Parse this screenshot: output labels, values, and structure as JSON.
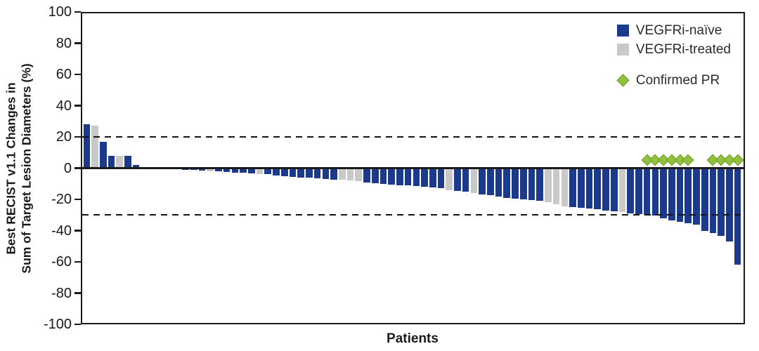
{
  "chart_data": {
    "type": "bar",
    "subtype": "waterfall",
    "title": "",
    "xlabel": "Patients",
    "ylabel": "Best RECIST v1.1 Changes in Sum of Target Lesion Diameters (%)",
    "ylabel_lines": [
      "Best RECIST v1.1 Changes in",
      "Sum of Target Lesion Diameters (%)"
    ],
    "ylim": [
      -100,
      100
    ],
    "yticks": [
      100,
      80,
      60,
      40,
      20,
      0,
      -20,
      -40,
      -60,
      -80,
      -100
    ],
    "reference_lines": [
      20,
      -30
    ],
    "grid": false,
    "legend_position": "top-right",
    "colors": {
      "naive": "#1b3a8c",
      "treated": "#c9c9c9",
      "confirmed_pr": "#92c03e",
      "axis": "#1a1a1a"
    },
    "series": [
      {
        "name": "VEGFRi-naïve",
        "group": "naive",
        "color": "#1b3a8c"
      },
      {
        "name": "VEGFRi-treated",
        "group": "treated",
        "color": "#c9c9c9"
      }
    ],
    "pr_marker": {
      "label": "Confirmed PR",
      "color": "#92c03e",
      "shape": "diamond"
    },
    "n_patients": 80,
    "patients": [
      {
        "value": 28,
        "group": "naive",
        "confirmed_pr": false
      },
      {
        "value": 27,
        "group": "treated",
        "confirmed_pr": false
      },
      {
        "value": 17,
        "group": "naive",
        "confirmed_pr": false
      },
      {
        "value": 8,
        "group": "naive",
        "confirmed_pr": false
      },
      {
        "value": 8,
        "group": "treated",
        "confirmed_pr": false
      },
      {
        "value": 8,
        "group": "naive",
        "confirmed_pr": false
      },
      {
        "value": 2,
        "group": "naive",
        "confirmed_pr": false
      },
      {
        "value": 0,
        "group": "naive",
        "confirmed_pr": false
      },
      {
        "value": 0,
        "group": "naive",
        "confirmed_pr": false
      },
      {
        "value": 0,
        "group": "naive",
        "confirmed_pr": false
      },
      {
        "value": 0,
        "group": "naive",
        "confirmed_pr": false
      },
      {
        "value": -0.5,
        "group": "naive",
        "confirmed_pr": false
      },
      {
        "value": -1,
        "group": "naive",
        "confirmed_pr": false
      },
      {
        "value": -1,
        "group": "naive",
        "confirmed_pr": false
      },
      {
        "value": -1.5,
        "group": "naive",
        "confirmed_pr": false
      },
      {
        "value": -2,
        "group": "treated",
        "confirmed_pr": false
      },
      {
        "value": -2,
        "group": "naive",
        "confirmed_pr": false
      },
      {
        "value": -2.5,
        "group": "naive",
        "confirmed_pr": false
      },
      {
        "value": -3,
        "group": "naive",
        "confirmed_pr": false
      },
      {
        "value": -3,
        "group": "naive",
        "confirmed_pr": false
      },
      {
        "value": -3.5,
        "group": "naive",
        "confirmed_pr": false
      },
      {
        "value": -4,
        "group": "treated",
        "confirmed_pr": false
      },
      {
        "value": -4,
        "group": "naive",
        "confirmed_pr": false
      },
      {
        "value": -4.5,
        "group": "naive",
        "confirmed_pr": false
      },
      {
        "value": -5,
        "group": "naive",
        "confirmed_pr": false
      },
      {
        "value": -5.5,
        "group": "naive",
        "confirmed_pr": false
      },
      {
        "value": -6,
        "group": "naive",
        "confirmed_pr": false
      },
      {
        "value": -6,
        "group": "naive",
        "confirmed_pr": false
      },
      {
        "value": -6.5,
        "group": "naive",
        "confirmed_pr": false
      },
      {
        "value": -7,
        "group": "naive",
        "confirmed_pr": false
      },
      {
        "value": -7.5,
        "group": "naive",
        "confirmed_pr": false
      },
      {
        "value": -7.5,
        "group": "treated",
        "confirmed_pr": false
      },
      {
        "value": -8,
        "group": "treated",
        "confirmed_pr": false
      },
      {
        "value": -8.5,
        "group": "treated",
        "confirmed_pr": false
      },
      {
        "value": -9,
        "group": "naive",
        "confirmed_pr": false
      },
      {
        "value": -9.5,
        "group": "naive",
        "confirmed_pr": false
      },
      {
        "value": -10,
        "group": "naive",
        "confirmed_pr": false
      },
      {
        "value": -10.5,
        "group": "naive",
        "confirmed_pr": false
      },
      {
        "value": -11,
        "group": "naive",
        "confirmed_pr": false
      },
      {
        "value": -11,
        "group": "naive",
        "confirmed_pr": false
      },
      {
        "value": -11.5,
        "group": "naive",
        "confirmed_pr": false
      },
      {
        "value": -12,
        "group": "naive",
        "confirmed_pr": false
      },
      {
        "value": -12.5,
        "group": "naive",
        "confirmed_pr": false
      },
      {
        "value": -13,
        "group": "naive",
        "confirmed_pr": false
      },
      {
        "value": -14,
        "group": "treated",
        "confirmed_pr": false
      },
      {
        "value": -14.5,
        "group": "naive",
        "confirmed_pr": false
      },
      {
        "value": -15,
        "group": "naive",
        "confirmed_pr": false
      },
      {
        "value": -16,
        "group": "treated",
        "confirmed_pr": false
      },
      {
        "value": -17,
        "group": "naive",
        "confirmed_pr": false
      },
      {
        "value": -17.5,
        "group": "naive",
        "confirmed_pr": false
      },
      {
        "value": -18,
        "group": "naive",
        "confirmed_pr": false
      },
      {
        "value": -19,
        "group": "naive",
        "confirmed_pr": false
      },
      {
        "value": -19.5,
        "group": "naive",
        "confirmed_pr": false
      },
      {
        "value": -20,
        "group": "naive",
        "confirmed_pr": false
      },
      {
        "value": -20.5,
        "group": "naive",
        "confirmed_pr": false
      },
      {
        "value": -21,
        "group": "naive",
        "confirmed_pr": false
      },
      {
        "value": -22,
        "group": "treated",
        "confirmed_pr": false
      },
      {
        "value": -23,
        "group": "treated",
        "confirmed_pr": false
      },
      {
        "value": -24.5,
        "group": "treated",
        "confirmed_pr": false
      },
      {
        "value": -25,
        "group": "naive",
        "confirmed_pr": false
      },
      {
        "value": -25.5,
        "group": "naive",
        "confirmed_pr": false
      },
      {
        "value": -26,
        "group": "naive",
        "confirmed_pr": false
      },
      {
        "value": -26.5,
        "group": "naive",
        "confirmed_pr": false
      },
      {
        "value": -27,
        "group": "naive",
        "confirmed_pr": false
      },
      {
        "value": -27.5,
        "group": "naive",
        "confirmed_pr": false
      },
      {
        "value": -28,
        "group": "treated",
        "confirmed_pr": false
      },
      {
        "value": -29,
        "group": "naive",
        "confirmed_pr": false
      },
      {
        "value": -29.5,
        "group": "naive",
        "confirmed_pr": false
      },
      {
        "value": -30,
        "group": "naive",
        "confirmed_pr": true
      },
      {
        "value": -30.5,
        "group": "naive",
        "confirmed_pr": true
      },
      {
        "value": -32,
        "group": "naive",
        "confirmed_pr": true
      },
      {
        "value": -33.5,
        "group": "naive",
        "confirmed_pr": true
      },
      {
        "value": -34.5,
        "group": "naive",
        "confirmed_pr": true
      },
      {
        "value": -35.5,
        "group": "naive",
        "confirmed_pr": true
      },
      {
        "value": -36,
        "group": "naive",
        "confirmed_pr": false
      },
      {
        "value": -40,
        "group": "naive",
        "confirmed_pr": false
      },
      {
        "value": -41.5,
        "group": "naive",
        "confirmed_pr": true
      },
      {
        "value": -43.5,
        "group": "naive",
        "confirmed_pr": true
      },
      {
        "value": -47,
        "group": "naive",
        "confirmed_pr": true
      },
      {
        "value": -62,
        "group": "naive",
        "confirmed_pr": true
      }
    ]
  }
}
